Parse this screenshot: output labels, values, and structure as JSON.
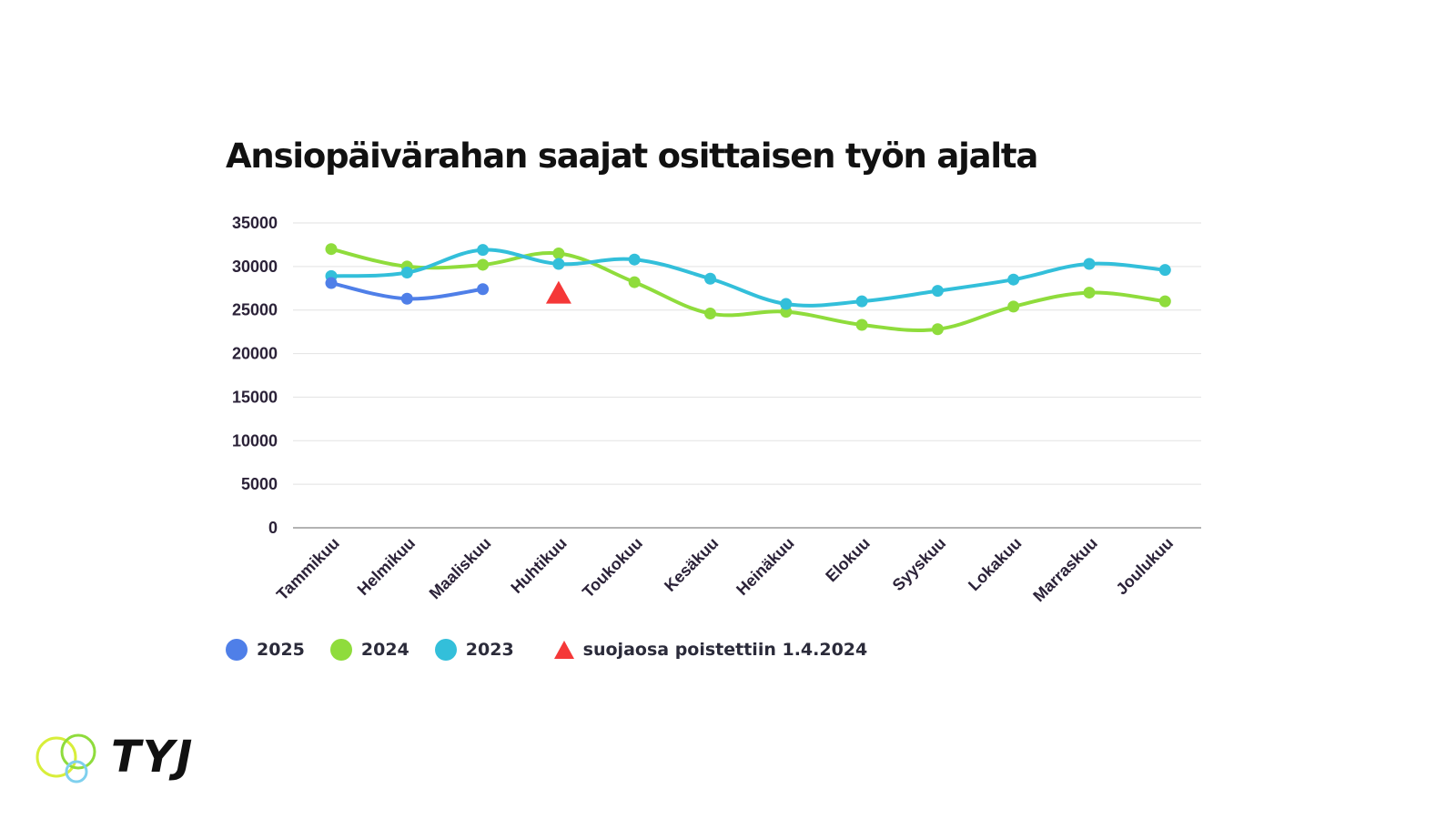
{
  "chart_data": {
    "type": "line",
    "title": "Ansiopäivärahan saajat osittaisen työn ajalta",
    "categories": [
      "Tammikuu",
      "Helmikuu",
      "Maaliskuu",
      "Huhtikuu",
      "Toukokuu",
      "Kesäkuu",
      "Heinäkuu",
      "Elokuu",
      "Syyskuu",
      "Lokakuu",
      "Marraskuu",
      "Joulukuu"
    ],
    "ylim": [
      0,
      35000
    ],
    "yticks": [
      "0",
      "5000",
      "10000",
      "15000",
      "20000",
      "25000",
      "30000",
      "35000"
    ],
    "grid": true,
    "legend_position": "bottom-left",
    "series": [
      {
        "name": "2025",
        "color": "#4f7fe8",
        "values": [
          28100,
          26300,
          27400,
          null,
          null,
          null,
          null,
          null,
          null,
          null,
          null,
          null
        ]
      },
      {
        "name": "2024",
        "color": "#8fdc3c",
        "values": [
          32000,
          30000,
          30200,
          31500,
          28200,
          24600,
          24800,
          23300,
          22800,
          25400,
          27000,
          26000
        ]
      },
      {
        "name": "2023",
        "color": "#33bfda",
        "values": [
          28900,
          29300,
          31900,
          30300,
          30800,
          28600,
          25700,
          26000,
          27200,
          28500,
          30300,
          29600
        ]
      }
    ],
    "annotation": {
      "label": "suojaosa poistettiin 1.4.2024",
      "category": "Huhtikuu",
      "value": 27000,
      "color": "#f53838",
      "marker": "triangle"
    }
  },
  "logo": {
    "text": "TYJ"
  }
}
